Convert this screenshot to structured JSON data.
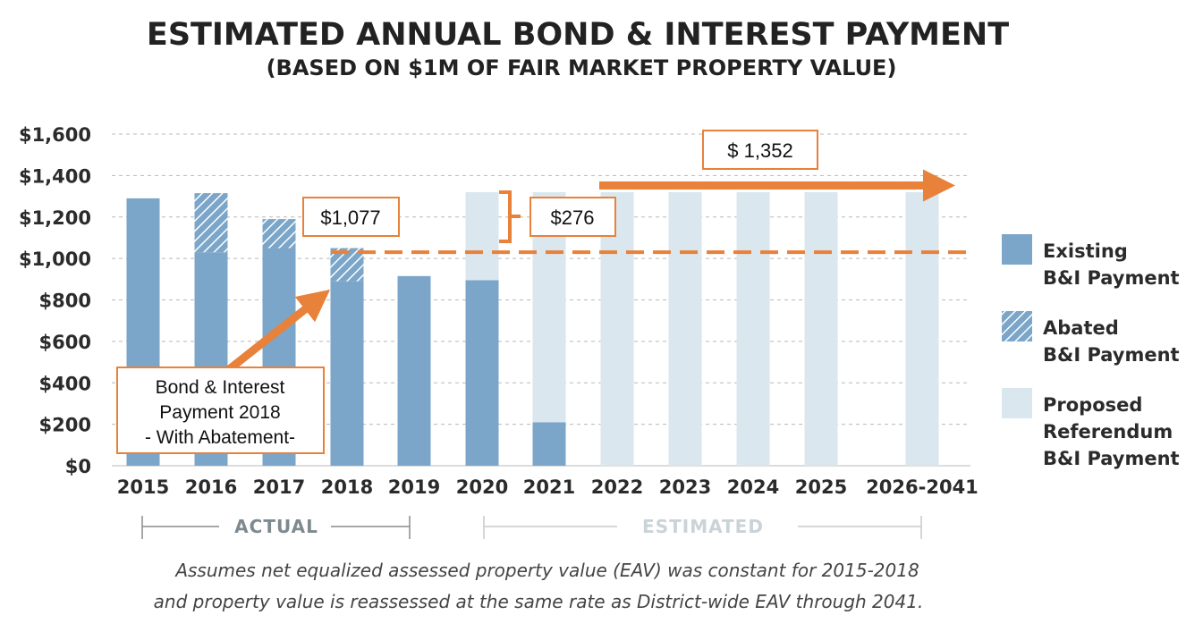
{
  "chart_data": {
    "type": "bar",
    "title": "ESTIMATED ANNUAL BOND & INTEREST PAYMENT",
    "subtitle": "(BASED ON $1M OF FAIR MARKET PROPERTY VALUE)",
    "ylim": [
      0,
      1600
    ],
    "yticks": [
      0,
      200,
      400,
      600,
      800,
      1000,
      1200,
      1400,
      1600
    ],
    "ytick_labels": [
      "$0",
      "$200",
      "$400",
      "$600",
      "$800",
      "$1,000",
      "$1,200",
      "$1,400",
      "$1,600"
    ],
    "categories": [
      "2015",
      "2016",
      "2017",
      "2018",
      "2019",
      "2020",
      "2021",
      "2022",
      "2023",
      "2024",
      "2025",
      "2026-2041"
    ],
    "series": [
      {
        "name": "Existing B&I Payment",
        "color": "#7ba6c9",
        "values": [
          1290,
          1030,
          1050,
          890,
          915,
          895,
          210,
          0,
          0,
          0,
          0,
          0
        ]
      },
      {
        "name": "Abated B&I Payment",
        "color": "#7ba6c9",
        "pattern": "hatch",
        "values": [
          0,
          285,
          140,
          160,
          0,
          0,
          0,
          0,
          0,
          0,
          0,
          0
        ]
      },
      {
        "name": "Proposed Referendum B&I Payment",
        "color": "#dbe7ee",
        "values": [
          0,
          0,
          0,
          0,
          0,
          425,
          1110,
          1320,
          1320,
          1320,
          1320,
          1320
        ]
      }
    ],
    "legend": [
      {
        "line1": "Existing",
        "line2": "B&I Payment",
        "line3": ""
      },
      {
        "line1": "Abated",
        "line2": "B&I Payment",
        "line3": ""
      },
      {
        "line1": "Proposed",
        "line2": "Referendum",
        "line3": "B&I Payment"
      }
    ],
    "legend_position": "right",
    "reference_line": {
      "value": 1030,
      "style": "dashed",
      "color": "#e8813a"
    },
    "arrow_value": 1352,
    "periods": {
      "actual": "ACTUAL",
      "estimated": "ESTIMATED"
    },
    "callouts": {
      "value_2018": "$1,077",
      "increase": "$276",
      "estimated": "$ 1,352",
      "note_line1": "Bond & Interest",
      "note_line2": "Payment 2018",
      "note_line3": "- With Abatement-"
    },
    "footnote_line1": "Assumes net equalized assessed property value (EAV) was constant for 2015-2018",
    "footnote_line2": "and property value is reassessed at the same rate as District-wide EAV through 2041."
  }
}
